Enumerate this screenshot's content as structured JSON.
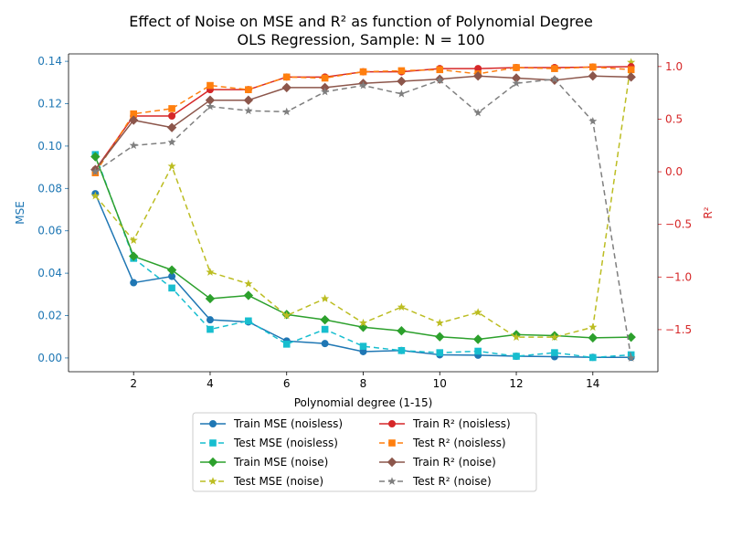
{
  "chart_data": {
    "type": "line",
    "title_line1": "Effect of Noise on MSE and R² as function of Polynomial Degree",
    "title_line2": "OLS Regression, Sample: N = 100",
    "xlabel": "Polynomial degree (1-15)",
    "ylabel_left": "MSE",
    "ylabel_right": "R²",
    "left_axis_color": "#1f77b4",
    "right_axis_color": "#d62728",
    "x": [
      1,
      2,
      3,
      4,
      5,
      6,
      7,
      8,
      9,
      10,
      11,
      12,
      13,
      14,
      15
    ],
    "xlim": [
      0.3,
      15.7
    ],
    "x_ticks": [
      2,
      4,
      6,
      8,
      10,
      12,
      14
    ],
    "ylim_left": [
      -0.0065,
      0.1435
    ],
    "yticks_left": [
      "0.00",
      "0.02",
      "0.04",
      "0.06",
      "0.08",
      "0.10",
      "0.12",
      "0.14"
    ],
    "ylim_right": [
      -1.9,
      1.12
    ],
    "yticks_right": [
      "−1.5",
      "−1.0",
      "−0.5",
      "0.0",
      "0.5",
      "1.0"
    ],
    "series": [
      {
        "name": "Train MSE (noisless)",
        "axis": "left",
        "color": "#1f77b4",
        "dash": "",
        "marker": "circle",
        "values": [
          0.0775,
          0.0355,
          0.0385,
          0.018,
          0.017,
          0.008,
          0.0068,
          0.003,
          0.0035,
          0.0015,
          0.0013,
          0.0008,
          0.0006,
          0.0003,
          0.0003
        ]
      },
      {
        "name": "Test MSE (noisless)",
        "axis": "left",
        "color": "#17becf",
        "dash": "6,4",
        "marker": "square",
        "values": [
          0.096,
          0.047,
          0.033,
          0.0135,
          0.0175,
          0.0065,
          0.0135,
          0.0055,
          0.0035,
          0.0025,
          0.0032,
          0.0008,
          0.0025,
          0.0002,
          0.0015
        ]
      },
      {
        "name": "Train MSE (noise)",
        "axis": "left",
        "color": "#2ca02c",
        "dash": "",
        "marker": "diamond",
        "values": [
          0.095,
          0.048,
          0.0415,
          0.028,
          0.0295,
          0.0205,
          0.018,
          0.0145,
          0.0128,
          0.01,
          0.0088,
          0.011,
          0.0105,
          0.0095,
          0.0098
        ]
      },
      {
        "name": "Test MSE (noise)",
        "axis": "left",
        "color": "#bcbd22",
        "dash": "6,4",
        "marker": "star",
        "values": [
          0.0765,
          0.0555,
          0.0905,
          0.0405,
          0.035,
          0.02,
          0.028,
          0.0165,
          0.024,
          0.0165,
          0.0215,
          0.0098,
          0.0098,
          0.0145,
          0.1395
        ]
      },
      {
        "name": "Train R² (noisless)",
        "axis": "right",
        "color": "#d62728",
        "dash": "",
        "marker": "circle",
        "values": [
          0.02,
          0.53,
          0.53,
          0.78,
          0.78,
          0.9,
          0.9,
          0.95,
          0.95,
          0.98,
          0.98,
          0.99,
          0.99,
          0.995,
          0.998
        ]
      },
      {
        "name": "Test R² (noisless)",
        "axis": "right",
        "color": "#ff7f0e",
        "dash": "6,4",
        "marker": "square",
        "values": [
          -0.01,
          0.55,
          0.6,
          0.82,
          0.78,
          0.9,
          0.89,
          0.95,
          0.96,
          0.97,
          0.93,
          0.99,
          0.98,
          0.995,
          0.97
        ]
      },
      {
        "name": "Train R² (noise)",
        "axis": "right",
        "color": "#8c564b",
        "dash": "",
        "marker": "diamond",
        "values": [
          0.02,
          0.49,
          0.42,
          0.68,
          0.68,
          0.8,
          0.8,
          0.84,
          0.86,
          0.88,
          0.91,
          0.89,
          0.87,
          0.91,
          0.9
        ]
      },
      {
        "name": "Test R² (noise)",
        "axis": "right",
        "color": "#7f7f7f",
        "dash": "6,4",
        "marker": "star",
        "values": [
          0.0,
          0.25,
          0.28,
          0.62,
          0.58,
          0.57,
          0.76,
          0.82,
          0.74,
          0.87,
          0.56,
          0.84,
          0.88,
          0.48,
          -1.77
        ]
      }
    ],
    "legend_placement": "below plot, two columns",
    "grid": false
  }
}
